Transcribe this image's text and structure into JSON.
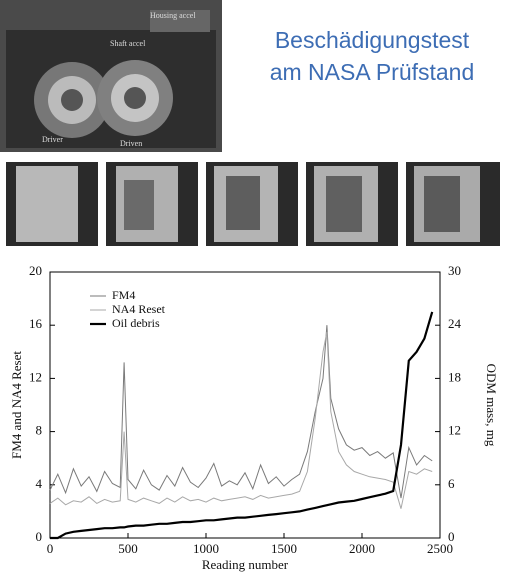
{
  "header": {
    "title": [
      "Beschädigungstest",
      "am NASA Prüfstand"
    ]
  },
  "photo": {
    "labels": [
      "Housing accel",
      "Shaft accel",
      "Driver",
      "Driven"
    ]
  },
  "chart_data": {
    "type": "line",
    "xlabel": "Reading number",
    "ylabel": "FM4 and NA4 Reset",
    "y2label": "ODM mass, mg",
    "x": [
      0,
      50,
      100,
      150,
      200,
      250,
      300,
      350,
      400,
      450,
      475,
      500,
      550,
      600,
      650,
      700,
      750,
      800,
      850,
      900,
      950,
      1000,
      1050,
      1100,
      1150,
      1200,
      1250,
      1300,
      1350,
      1400,
      1450,
      1500,
      1550,
      1600,
      1650,
      1700,
      1750,
      1775,
      1800,
      1850,
      1900,
      1950,
      2000,
      2050,
      2100,
      2150,
      2200,
      2250,
      2300,
      2350,
      2400,
      2450
    ],
    "series": [
      {
        "name": "FM4",
        "color": "#7a7a7a",
        "width": 1,
        "values": [
          3.6,
          4.8,
          3.4,
          5.2,
          3.9,
          4.6,
          3.5,
          5.0,
          4.1,
          3.8,
          13.2,
          4.4,
          3.7,
          5.1,
          4.0,
          3.6,
          4.7,
          3.9,
          5.3,
          4.2,
          3.8,
          4.5,
          5.6,
          3.9,
          4.3,
          4.0,
          4.9,
          3.7,
          5.5,
          4.1,
          4.6,
          3.9,
          4.4,
          4.8,
          6.5,
          9.5,
          12.0,
          16.0,
          10.5,
          8.2,
          7.0,
          6.6,
          6.8,
          6.2,
          6.5,
          6.0,
          6.4,
          3.0,
          6.8,
          5.5,
          6.2,
          5.8
        ]
      },
      {
        "name": "NA4 Reset",
        "color": "#a8a8a8",
        "width": 1,
        "values": [
          2.6,
          3.0,
          2.5,
          2.8,
          2.7,
          3.1,
          2.6,
          2.9,
          2.7,
          2.8,
          8.0,
          2.9,
          2.7,
          3.0,
          2.8,
          2.6,
          3.0,
          2.7,
          3.1,
          2.8,
          2.9,
          2.7,
          3.0,
          2.8,
          2.9,
          3.0,
          3.1,
          2.9,
          3.2,
          3.0,
          3.1,
          3.2,
          3.3,
          3.5,
          5.0,
          9.0,
          14.0,
          15.5,
          9.5,
          6.5,
          5.5,
          5.0,
          4.8,
          4.6,
          4.5,
          4.4,
          4.2,
          2.2,
          5.0,
          4.8,
          5.2,
          5.0
        ]
      },
      {
        "name": "Oil debris",
        "color": "#000000",
        "width": 2.2,
        "axis": "y2",
        "values": [
          0,
          0,
          0.5,
          0.7,
          0.8,
          0.9,
          1.0,
          1.1,
          1.1,
          1.2,
          1.2,
          1.3,
          1.4,
          1.4,
          1.5,
          1.6,
          1.6,
          1.7,
          1.8,
          1.8,
          1.9,
          2.0,
          2.0,
          2.1,
          2.2,
          2.3,
          2.3,
          2.4,
          2.5,
          2.6,
          2.7,
          2.8,
          2.9,
          3.0,
          3.2,
          3.4,
          3.6,
          3.7,
          3.8,
          4.0,
          4.1,
          4.2,
          4.4,
          4.6,
          4.8,
          5.0,
          5.3,
          10.5,
          20.0,
          21.0,
          22.5,
          25.5
        ]
      }
    ],
    "xlim": [
      0,
      2500
    ],
    "xticks": [
      0,
      500,
      1000,
      1500,
      2000,
      2500
    ],
    "ylim": [
      0,
      20
    ],
    "yticks": [
      0,
      4,
      8,
      12,
      16,
      20
    ],
    "y2lim": [
      0,
      30
    ],
    "y2ticks": [
      0,
      6,
      12,
      18,
      24,
      30
    ],
    "legend": "upper-left"
  }
}
